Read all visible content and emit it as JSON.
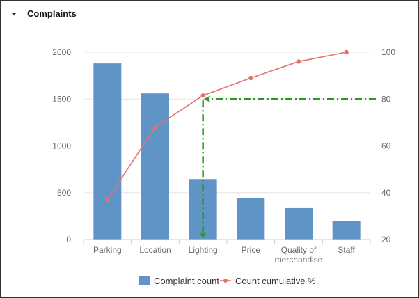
{
  "panel": {
    "title": "Complaints",
    "collapse_icon": "caret-down-icon"
  },
  "colors": {
    "bar": "#6093c6",
    "line": "#e07370",
    "annotation": "#2a9a1f",
    "grid": "#e6e6e6",
    "axis_text": "#666666"
  },
  "chart_data": {
    "type": "bar",
    "categories": [
      "Parking",
      "Location",
      "Lighting",
      "Price",
      "Quality of merchandise",
      "Staff"
    ],
    "category_lines": [
      [
        "Parking"
      ],
      [
        "Location"
      ],
      [
        "Lighting"
      ],
      [
        "Price"
      ],
      [
        "Quality of",
        "merchandise"
      ],
      [
        "Staff"
      ]
    ],
    "series": [
      {
        "name": "Complaint count",
        "type": "bar",
        "axis": "left",
        "values": [
          1880,
          1560,
          645,
          445,
          335,
          200
        ]
      },
      {
        "name": "Count cumulative %",
        "type": "line",
        "axis": "right",
        "values": [
          37,
          68,
          81.5,
          89,
          96,
          100
        ]
      }
    ],
    "y_left": {
      "min": 0,
      "max": 2000,
      "ticks": [
        0,
        500,
        1000,
        1500,
        2000
      ]
    },
    "y_right": {
      "min": 20,
      "max": 100,
      "ticks": [
        20,
        40,
        60,
        80,
        100
      ]
    },
    "grid": true,
    "legend_position": "bottom",
    "annotation": {
      "style": "dash-dot arrows",
      "from_right_value": 80,
      "to_category": "Lighting"
    }
  }
}
